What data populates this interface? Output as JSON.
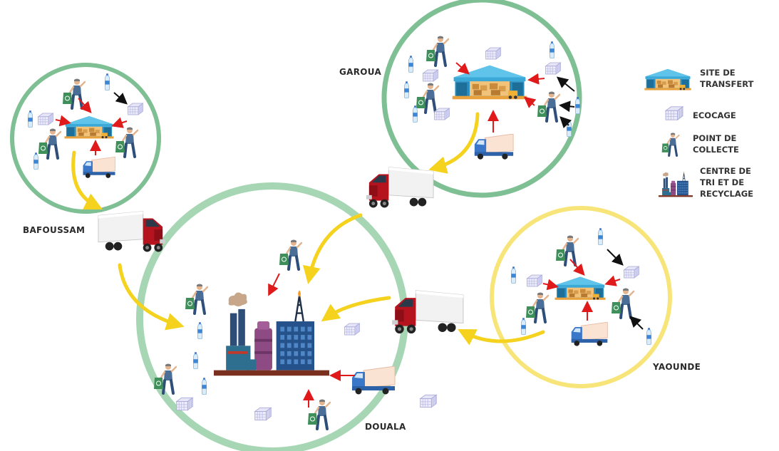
{
  "colors": {
    "green_ring": "#7fbf94",
    "douala_ring": "#a6d6b4",
    "yellow_ring": "#f8e57a",
    "yellow_arrow": "#f4d21d",
    "red_arrow": "#e01a1a",
    "black_arrow": "#111111",
    "truck_cab": "#b5141f",
    "warehouse_blue": "#3aa9d8"
  },
  "regions": [
    {
      "id": "bafoussam",
      "label": "BAFOUSSAM",
      "ring": "green"
    },
    {
      "id": "garoua",
      "label": "GAROUA",
      "ring": "green"
    },
    {
      "id": "yaounde",
      "label": "YAOUNDE",
      "ring": "yellow"
    },
    {
      "id": "douala",
      "label": "DOUALA",
      "ring": "green"
    }
  ],
  "legend": [
    {
      "icon": "warehouse-icon",
      "lines": [
        "SITE DE",
        "TRANSFERT"
      ]
    },
    {
      "icon": "ecocage-icon",
      "lines": [
        "ECOCAGE"
      ]
    },
    {
      "icon": "collector-icon",
      "lines": [
        "POINT DE",
        "COLLECTE"
      ]
    },
    {
      "icon": "factory-icon",
      "lines": [
        "CENTRE DE",
        "TRI ET DE",
        "RECYCLAGE"
      ]
    }
  ]
}
